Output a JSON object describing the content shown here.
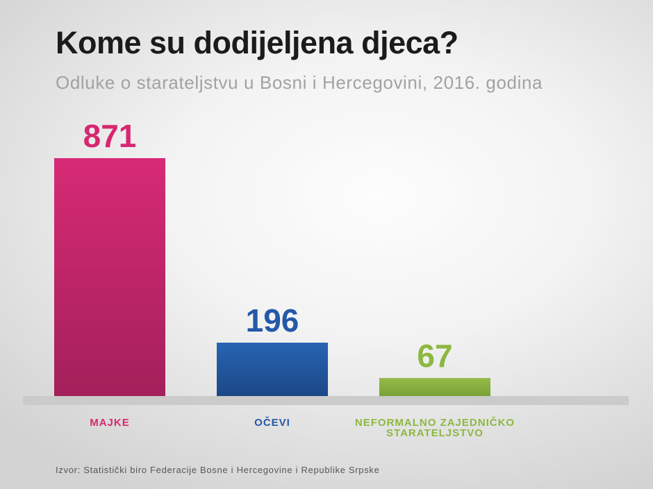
{
  "header": {
    "title": "Kome su dodijeljena djeca?",
    "subtitle": "Odluke o starateljstvu u Bosni i Hercegovini, 2016. godina"
  },
  "footer": {
    "source": "Izvor: Statistički biro Federacije Bosne i Hercegovine i Republike Srpske"
  },
  "chart_data": {
    "type": "bar",
    "title": "Kome su dodijeljena djeca?",
    "subtitle": "Odluke o starateljstvu u Bosni i Hercegovini, 2016. godina",
    "categories": [
      "MAJKE",
      "OČEVI",
      "NEFORMALNO ZAJEDNIČKO STARATELJSTVO"
    ],
    "values": [
      871,
      196,
      67
    ],
    "series": [
      {
        "label": "MAJKE",
        "value": 871,
        "value_label": "871",
        "text_color": "#d6286f",
        "bar_color_top": "#d72a76",
        "bar_color_bottom": "#a32059"
      },
      {
        "label": "OČEVI",
        "value": 196,
        "value_label": "196",
        "text_color": "#2458a8",
        "bar_color_top": "#2765b2",
        "bar_color_bottom": "#1c4787"
      },
      {
        "label": "NEFORMALNO ZAJEDNIČKO STARATELJSTVO",
        "value": 67,
        "value_label": "67",
        "text_color": "#8db840",
        "bar_color_top": "#95ba4a",
        "bar_color_bottom": "#79a134"
      }
    ],
    "ylim": [
      0,
      871
    ],
    "grid": false,
    "legend": false,
    "baseline_color": "#cbcbcb",
    "source": "Izvor: Statistički biro Federacije Bosne i Hercegovine i Republike Srpske"
  }
}
